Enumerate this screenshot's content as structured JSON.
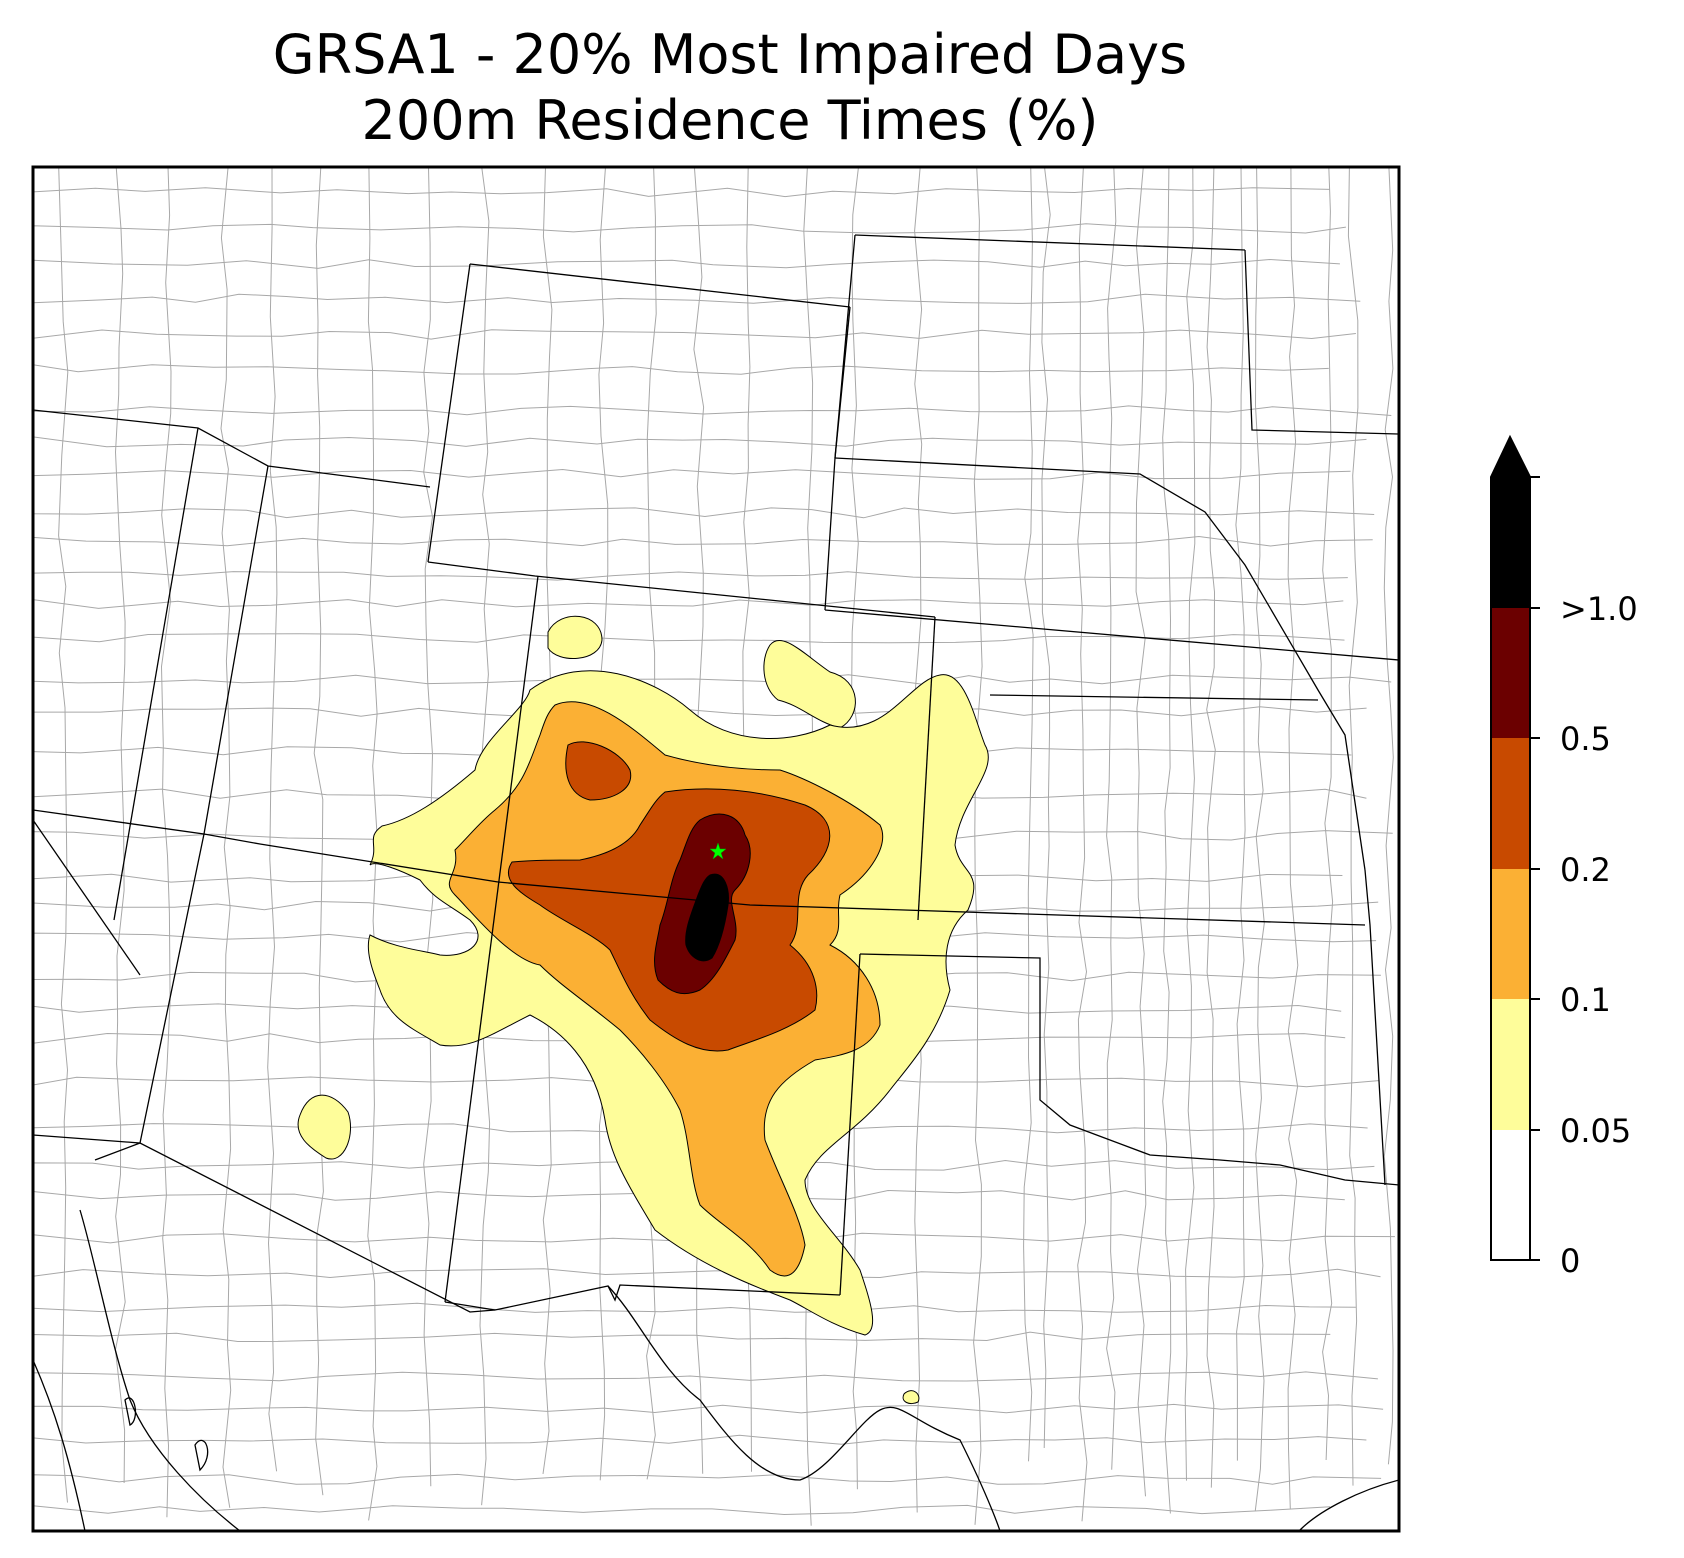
{
  "title": {
    "line1": "GRSA1 - 20% Most Impaired Days",
    "line2": "200m Residence Times (%)"
  },
  "colorbar": {
    "labels": [
      ">1.0",
      "0.5",
      "0.2",
      "0.1",
      "0.05",
      "0"
    ],
    "colors": {
      "over_1": "#000000",
      "0.5_to_1": "#6b0000",
      "0.2_to_0.5": "#c84a00",
      "0.1_to_0.2": "#fbb034",
      "0.05_to_0.1": "#fefd9a",
      "0_to_0.05": "#ffffff"
    },
    "extend": "max"
  },
  "map": {
    "receptor_marker_color": "#00ff00",
    "state_border_color": "#000000",
    "county_border_color": "#a0a0a0"
  }
}
